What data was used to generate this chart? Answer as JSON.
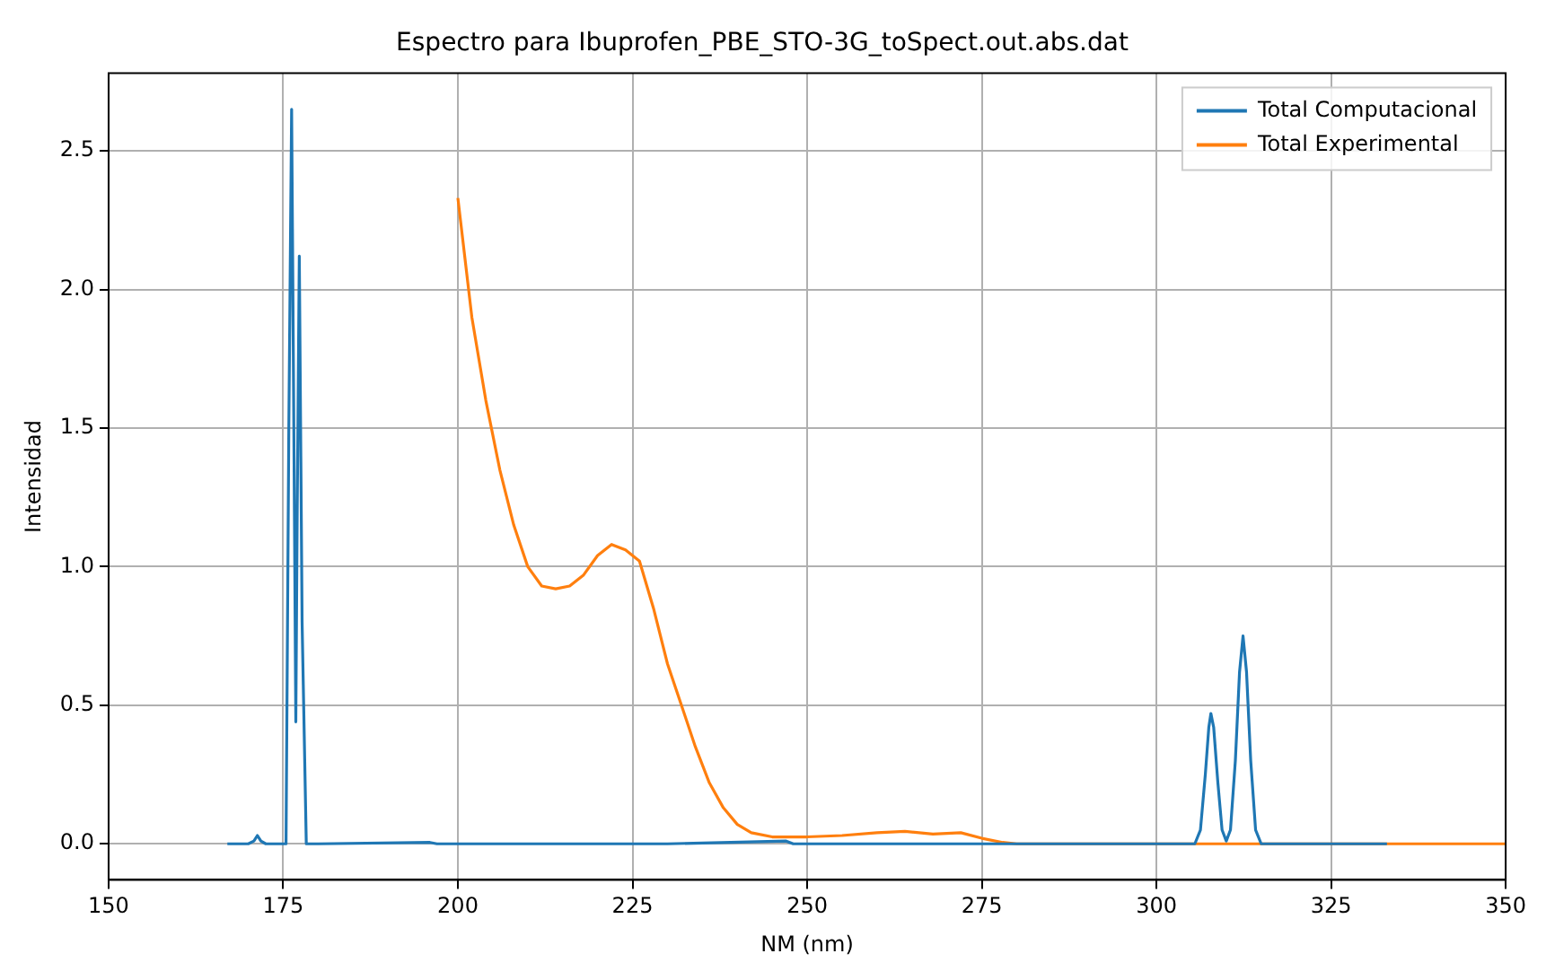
{
  "chart_data": {
    "type": "line",
    "title": "Espectro para Ibuprofen_PBE_STO-3G_toSpect.out.abs.dat",
    "xlabel": "NM (nm)",
    "ylabel": "Intensidad",
    "series": [
      {
        "name": "Total Computacional",
        "color": "#1f77b4",
        "x": [
          167,
          170,
          170.8,
          171.3,
          171.8,
          172.5,
          175.4,
          175.8,
          176.2,
          176.6,
          176.8,
          177.0,
          177.3,
          177.7,
          178.3,
          180,
          196,
          197,
          230,
          247,
          248,
          260,
          300,
          305.5,
          306.3,
          307,
          307.5,
          307.8,
          308.2,
          308.8,
          309.4,
          310,
          310.6,
          311.3,
          311.9,
          312.4,
          312.9,
          313.5,
          314.2,
          315,
          333
        ],
        "values": [
          0,
          0,
          0.01,
          0.03,
          0.01,
          0,
          0,
          1.5,
          2.65,
          1.2,
          0.44,
          1.2,
          2.12,
          0.8,
          0,
          0,
          0.005,
          0,
          0,
          0.01,
          0,
          0,
          0,
          0,
          0.05,
          0.25,
          0.42,
          0.47,
          0.42,
          0.22,
          0.05,
          0.01,
          0.05,
          0.3,
          0.62,
          0.75,
          0.62,
          0.3,
          0.05,
          0,
          0
        ]
      },
      {
        "name": "Total Experimental",
        "color": "#ff7f0e",
        "x": [
          200,
          202,
          204,
          206,
          208,
          210,
          212,
          214,
          216,
          218,
          220,
          222,
          224,
          226,
          228,
          230,
          232,
          234,
          236,
          238,
          240,
          242,
          245,
          250,
          255,
          260,
          264,
          268,
          272,
          275,
          278,
          280,
          350
        ],
        "values": [
          2.33,
          1.9,
          1.6,
          1.35,
          1.15,
          1.0,
          0.93,
          0.92,
          0.93,
          0.97,
          1.04,
          1.08,
          1.06,
          1.02,
          0.85,
          0.65,
          0.5,
          0.35,
          0.22,
          0.13,
          0.07,
          0.04,
          0.025,
          0.025,
          0.03,
          0.04,
          0.045,
          0.035,
          0.04,
          0.02,
          0.005,
          0,
          0
        ]
      }
    ],
    "xlim": [
      150,
      350
    ],
    "xticks": [
      150,
      175,
      200,
      225,
      250,
      275,
      300,
      325,
      350
    ],
    "ylim": [
      -0.13,
      2.78
    ],
    "yticks": [
      {
        "value": 0,
        "label": "0.0"
      },
      0.5,
      {
        "value": 1,
        "label": "1.0"
      },
      1.5,
      {
        "value": 2,
        "label": "2.0"
      },
      2.5
    ],
    "grid": true,
    "legend": "top right",
    "marker": "none",
    "line_style": "solid"
  }
}
